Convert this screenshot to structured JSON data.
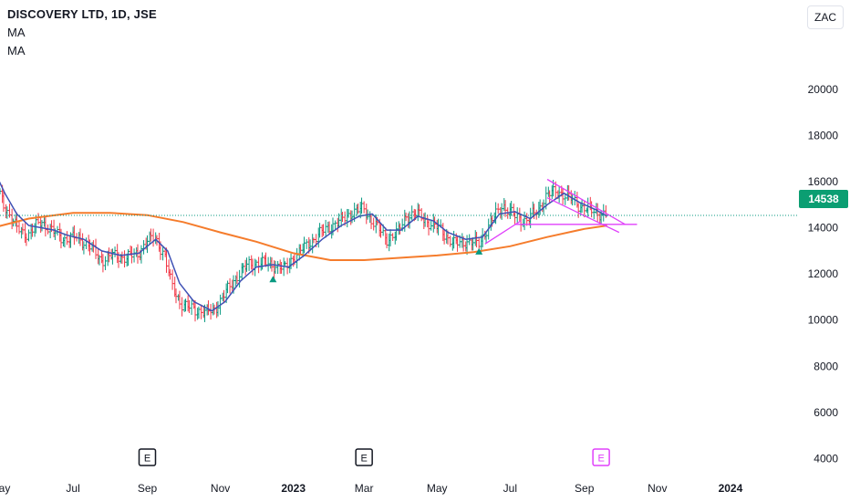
{
  "header": {
    "title": "DISCOVERY LTD, 1D, JSE",
    "indicator_1": "MA",
    "indicator_2": "MA"
  },
  "currency_button": "ZAC",
  "last_price": {
    "label": "14538",
    "value": 14538
  },
  "colors": {
    "up": "#089981",
    "down": "#f23645",
    "ma_fast": "#3f51b5",
    "ma_slow": "#f57c2c",
    "pattern": "#e040fb",
    "price_line": "#089981",
    "earnings_past": "#131722",
    "earnings_future": "#e040fb"
  },
  "chart_data": {
    "type": "candlestick",
    "title": "DISCOVERY LTD, 1D, JSE",
    "x_axis": {
      "type": "date",
      "range": [
        "2022-05-01",
        "2024-02-15"
      ],
      "tick_labels": [
        {
          "date": "2022-05-01",
          "label": "May",
          "bold": false
        },
        {
          "date": "2022-07-01",
          "label": "Jul",
          "bold": false
        },
        {
          "date": "2022-09-01",
          "label": "Sep",
          "bold": false
        },
        {
          "date": "2022-11-01",
          "label": "Nov",
          "bold": false
        },
        {
          "date": "2023-01-01",
          "label": "2023",
          "bold": true
        },
        {
          "date": "2023-03-01",
          "label": "Mar",
          "bold": false
        },
        {
          "date": "2023-05-01",
          "label": "May",
          "bold": false
        },
        {
          "date": "2023-07-01",
          "label": "Jul",
          "bold": false
        },
        {
          "date": "2023-09-01",
          "label": "Sep",
          "bold": false
        },
        {
          "date": "2023-11-01",
          "label": "Nov",
          "bold": false
        },
        {
          "date": "2024-01-01",
          "label": "2024",
          "bold": true
        }
      ]
    },
    "y_axis": {
      "range": [
        3500,
        21500
      ],
      "ticks": [
        4000,
        6000,
        8000,
        10000,
        12000,
        14000,
        16000,
        18000,
        20000
      ]
    },
    "price_series": [
      {
        "date": "2022-04-25",
        "close": 16200
      },
      {
        "date": "2022-05-05",
        "close": 15000
      },
      {
        "date": "2022-05-15",
        "close": 14000
      },
      {
        "date": "2022-05-25",
        "close": 13700
      },
      {
        "date": "2022-06-05",
        "close": 14300
      },
      {
        "date": "2022-06-15",
        "close": 13800
      },
      {
        "date": "2022-06-25",
        "close": 13500
      },
      {
        "date": "2022-07-05",
        "close": 13600
      },
      {
        "date": "2022-07-15",
        "close": 13200
      },
      {
        "date": "2022-07-25",
        "close": 12600
      },
      {
        "date": "2022-08-05",
        "close": 12800
      },
      {
        "date": "2022-08-15",
        "close": 12700
      },
      {
        "date": "2022-08-25",
        "close": 12900
      },
      {
        "date": "2022-09-01",
        "close": 13400
      },
      {
        "date": "2022-09-08",
        "close": 13600
      },
      {
        "date": "2022-09-15",
        "close": 12900
      },
      {
        "date": "2022-09-22",
        "close": 11500
      },
      {
        "date": "2022-10-01",
        "close": 10600
      },
      {
        "date": "2022-10-10",
        "close": 10500
      },
      {
        "date": "2022-10-20",
        "close": 10300
      },
      {
        "date": "2022-10-28",
        "close": 10500
      },
      {
        "date": "2022-11-05",
        "close": 11100
      },
      {
        "date": "2022-11-15",
        "close": 11900
      },
      {
        "date": "2022-11-25",
        "close": 12400
      },
      {
        "date": "2022-12-05",
        "close": 12500
      },
      {
        "date": "2022-12-15",
        "close": 12400
      },
      {
        "date": "2022-12-25",
        "close": 12200
      },
      {
        "date": "2023-01-01",
        "close": 12700
      },
      {
        "date": "2023-01-10",
        "close": 13100
      },
      {
        "date": "2023-01-20",
        "close": 13600
      },
      {
        "date": "2023-01-30",
        "close": 14000
      },
      {
        "date": "2023-02-10",
        "close": 14300
      },
      {
        "date": "2023-02-20",
        "close": 14700
      },
      {
        "date": "2023-03-01",
        "close": 14800
      },
      {
        "date": "2023-03-10",
        "close": 14200
      },
      {
        "date": "2023-03-20",
        "close": 13500
      },
      {
        "date": "2023-03-30",
        "close": 13800
      },
      {
        "date": "2023-04-05",
        "close": 14500
      },
      {
        "date": "2023-04-15",
        "close": 14600
      },
      {
        "date": "2023-04-25",
        "close": 14200
      },
      {
        "date": "2023-05-05",
        "close": 13900
      },
      {
        "date": "2023-05-15",
        "close": 13300
      },
      {
        "date": "2023-05-25",
        "close": 13400
      },
      {
        "date": "2023-06-05",
        "close": 13300
      },
      {
        "date": "2023-06-15",
        "close": 14200
      },
      {
        "date": "2023-06-25",
        "close": 15000
      },
      {
        "date": "2023-07-05",
        "close": 14500
      },
      {
        "date": "2023-07-15",
        "close": 14300
      },
      {
        "date": "2023-07-25",
        "close": 14800
      },
      {
        "date": "2023-08-01",
        "close": 15400
      },
      {
        "date": "2023-08-10",
        "close": 15600
      },
      {
        "date": "2023-08-20",
        "close": 15300
      },
      {
        "date": "2023-08-30",
        "close": 14900
      },
      {
        "date": "2023-09-10",
        "close": 14700
      },
      {
        "date": "2023-09-20",
        "close": 14538
      }
    ],
    "ma_fast": [
      {
        "date": "2022-04-25",
        "value": 16600
      },
      {
        "date": "2022-05-05",
        "value": 15500
      },
      {
        "date": "2022-05-15",
        "value": 14600
      },
      {
        "date": "2022-05-25",
        "value": 14100
      },
      {
        "date": "2022-06-05",
        "value": 14000
      },
      {
        "date": "2022-06-15",
        "value": 13900
      },
      {
        "date": "2022-06-25",
        "value": 13700
      },
      {
        "date": "2022-07-10",
        "value": 13500
      },
      {
        "date": "2022-07-25",
        "value": 13000
      },
      {
        "date": "2022-08-10",
        "value": 12800
      },
      {
        "date": "2022-08-25",
        "value": 12900
      },
      {
        "date": "2022-09-08",
        "value": 13500
      },
      {
        "date": "2022-09-18",
        "value": 13000
      },
      {
        "date": "2022-09-28",
        "value": 11600
      },
      {
        "date": "2022-10-10",
        "value": 10800
      },
      {
        "date": "2022-10-25",
        "value": 10400
      },
      {
        "date": "2022-11-05",
        "value": 10800
      },
      {
        "date": "2022-11-18",
        "value": 11700
      },
      {
        "date": "2022-12-01",
        "value": 12300
      },
      {
        "date": "2022-12-15",
        "value": 12400
      },
      {
        "date": "2022-12-28",
        "value": 12300
      },
      {
        "date": "2023-01-10",
        "value": 12800
      },
      {
        "date": "2023-01-25",
        "value": 13500
      },
      {
        "date": "2023-02-10",
        "value": 14100
      },
      {
        "date": "2023-02-25",
        "value": 14500
      },
      {
        "date": "2023-03-08",
        "value": 14600
      },
      {
        "date": "2023-03-20",
        "value": 13900
      },
      {
        "date": "2023-04-01",
        "value": 13900
      },
      {
        "date": "2023-04-15",
        "value": 14500
      },
      {
        "date": "2023-04-28",
        "value": 14300
      },
      {
        "date": "2023-05-10",
        "value": 13800
      },
      {
        "date": "2023-05-25",
        "value": 13500
      },
      {
        "date": "2023-06-08",
        "value": 13600
      },
      {
        "date": "2023-06-22",
        "value": 14600
      },
      {
        "date": "2023-07-05",
        "value": 14700
      },
      {
        "date": "2023-07-18",
        "value": 14400
      },
      {
        "date": "2023-08-01",
        "value": 15000
      },
      {
        "date": "2023-08-15",
        "value": 15500
      },
      {
        "date": "2023-08-28",
        "value": 15100
      },
      {
        "date": "2023-09-10",
        "value": 14800
      },
      {
        "date": "2023-09-20",
        "value": 14500
      }
    ],
    "ma_slow": [
      {
        "date": "2022-04-25",
        "value": 14000
      },
      {
        "date": "2022-05-25",
        "value": 14400
      },
      {
        "date": "2022-07-01",
        "value": 14650
      },
      {
        "date": "2022-08-01",
        "value": 14650
      },
      {
        "date": "2022-09-01",
        "value": 14550
      },
      {
        "date": "2022-10-01",
        "value": 14250
      },
      {
        "date": "2022-11-01",
        "value": 13800
      },
      {
        "date": "2022-12-01",
        "value": 13400
      },
      {
        "date": "2023-01-01",
        "value": 12900
      },
      {
        "date": "2023-02-01",
        "value": 12600
      },
      {
        "date": "2023-03-01",
        "value": 12600
      },
      {
        "date": "2023-04-01",
        "value": 12700
      },
      {
        "date": "2023-05-01",
        "value": 12800
      },
      {
        "date": "2023-06-01",
        "value": 12950
      },
      {
        "date": "2023-07-01",
        "value": 13200
      },
      {
        "date": "2023-08-01",
        "value": 13600
      },
      {
        "date": "2023-09-01",
        "value": 13950
      },
      {
        "date": "2023-09-20",
        "value": 14100
      }
    ],
    "drawings": [
      {
        "type": "trendline",
        "from": {
          "date": "2023-06-10",
          "value": 13300
        },
        "to": {
          "date": "2023-07-10",
          "value": 14300
        }
      },
      {
        "type": "trendline",
        "from": {
          "date": "2023-07-05",
          "value": 14150
        },
        "to": {
          "date": "2023-10-15",
          "value": 14150
        }
      },
      {
        "type": "trendline",
        "from": {
          "date": "2023-08-01",
          "value": 16100
        },
        "to": {
          "date": "2023-10-05",
          "value": 14150
        }
      },
      {
        "type": "trendline",
        "from": {
          "date": "2023-08-01",
          "value": 15300
        },
        "to": {
          "date": "2023-09-30",
          "value": 13800
        }
      }
    ],
    "signals": [
      {
        "date": "2022-12-15",
        "value": 11800
      },
      {
        "date": "2023-06-05",
        "value": 13000
      }
    ],
    "earnings_markers": [
      {
        "date": "2022-09-01",
        "label": "E",
        "future": false
      },
      {
        "date": "2023-03-01",
        "label": "E",
        "future": false
      },
      {
        "date": "2023-09-15",
        "label": "E",
        "future": true
      }
    ]
  }
}
